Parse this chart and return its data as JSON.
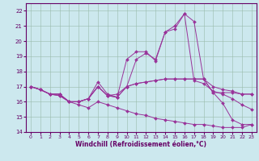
{
  "xlabel": "Windchill (Refroidissement éolien,°C)",
  "background_color": "#cce8ee",
  "line_color": "#993399",
  "xlim": [
    -0.5,
    23.5
  ],
  "ylim": [
    14.0,
    22.5
  ],
  "yticks": [
    14,
    15,
    16,
    17,
    18,
    19,
    20,
    21,
    22
  ],
  "xticks": [
    0,
    1,
    2,
    3,
    4,
    5,
    6,
    7,
    8,
    9,
    10,
    11,
    12,
    13,
    14,
    15,
    16,
    17,
    18,
    19,
    20,
    21,
    22,
    23
  ],
  "lines": [
    {
      "x": [
        0,
        1,
        2,
        3,
        4,
        5,
        6,
        7,
        8,
        9,
        10,
        11,
        12,
        13,
        14,
        15,
        16,
        17,
        18,
        19,
        20,
        21,
        22,
        23
      ],
      "y": [
        17.0,
        16.8,
        16.5,
        16.5,
        16.0,
        16.0,
        16.2,
        17.3,
        16.5,
        16.3,
        18.8,
        19.3,
        19.3,
        18.7,
        20.6,
        20.8,
        21.8,
        21.3,
        17.5,
        16.6,
        15.9,
        14.8,
        14.5,
        14.5
      ]
    },
    {
      "x": [
        0,
        1,
        2,
        3,
        4,
        5,
        6,
        7,
        8,
        9,
        10,
        11,
        12,
        13,
        14,
        15,
        16,
        17,
        18,
        19,
        20,
        21,
        22,
        23
      ],
      "y": [
        17.0,
        16.8,
        16.5,
        16.5,
        16.0,
        16.0,
        16.2,
        17.0,
        16.4,
        16.3,
        17.0,
        17.2,
        17.3,
        17.4,
        17.5,
        17.5,
        17.5,
        17.5,
        17.5,
        17.0,
        16.8,
        16.7,
        16.5,
        16.5
      ]
    },
    {
      "x": [
        0,
        1,
        2,
        3,
        4,
        5,
        6,
        7,
        8,
        9,
        10,
        11,
        12,
        13,
        14,
        15,
        16,
        17,
        18,
        19,
        20,
        21,
        22,
        23
      ],
      "y": [
        17.0,
        16.8,
        16.5,
        16.5,
        16.0,
        16.0,
        16.2,
        17.0,
        16.4,
        16.3,
        17.0,
        18.8,
        19.2,
        18.8,
        20.6,
        21.0,
        21.8,
        17.4,
        17.2,
        16.7,
        16.5,
        16.2,
        15.8,
        15.5
      ]
    },
    {
      "x": [
        0,
        1,
        2,
        3,
        4,
        5,
        6,
        7,
        8,
        9,
        10,
        11,
        12,
        13,
        14,
        15,
        16,
        17,
        18,
        19,
        20,
        21,
        22,
        23
      ],
      "y": [
        17.0,
        16.8,
        16.5,
        16.4,
        16.0,
        16.0,
        16.2,
        17.0,
        16.4,
        16.5,
        17.0,
        17.2,
        17.3,
        17.4,
        17.5,
        17.5,
        17.5,
        17.5,
        17.5,
        16.6,
        16.6,
        16.6,
        16.5,
        16.5
      ]
    },
    {
      "x": [
        0,
        1,
        2,
        3,
        4,
        5,
        6,
        7,
        8,
        9,
        10,
        11,
        12,
        13,
        14,
        15,
        16,
        17,
        18,
        19,
        20,
        21,
        22,
        23
      ],
      "y": [
        17.0,
        16.8,
        16.5,
        16.4,
        16.0,
        15.8,
        15.6,
        16.0,
        15.8,
        15.6,
        15.4,
        15.2,
        15.1,
        14.9,
        14.8,
        14.7,
        14.6,
        14.5,
        14.5,
        14.4,
        14.3,
        14.3,
        14.3,
        14.5
      ]
    }
  ]
}
